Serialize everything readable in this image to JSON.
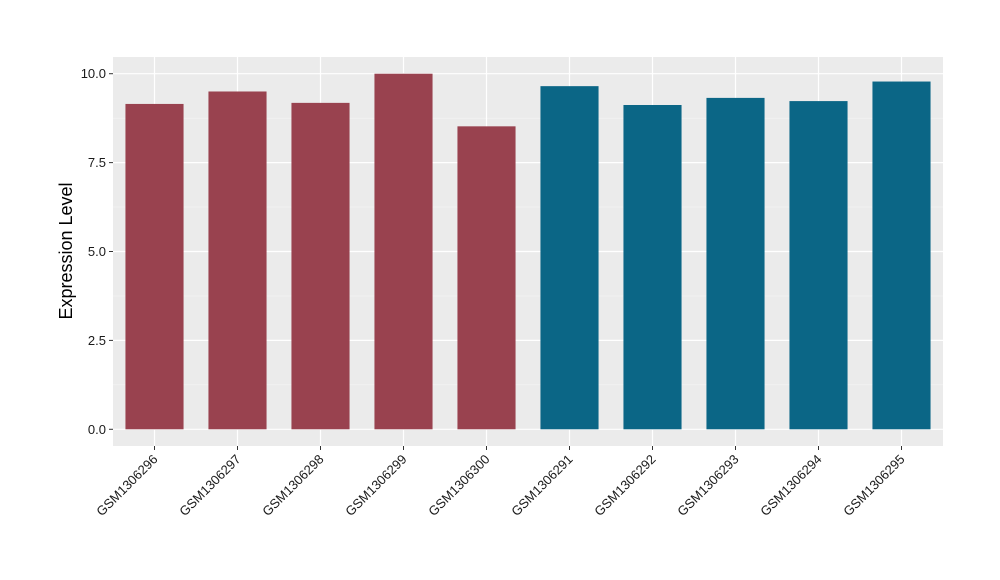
{
  "chart_data": {
    "type": "bar",
    "title": "",
    "xlabel": "",
    "ylabel": "Expression Level",
    "ylim": [
      -0.47,
      10.47
    ],
    "yticks": [
      0.0,
      2.5,
      5.0,
      7.5,
      10.0
    ],
    "ytick_labels": [
      "0.0",
      "2.5",
      "5.0",
      "7.5",
      "10.0"
    ],
    "grid": true,
    "legend": "none",
    "categories": [
      "GSM1306296",
      "GSM1306297",
      "GSM1306298",
      "GSM1306299",
      "GSM1306300",
      "GSM1306291",
      "GSM1306292",
      "GSM1306293",
      "GSM1306294",
      "GSM1306295"
    ],
    "values": [
      9.15,
      9.5,
      9.18,
      10.0,
      8.52,
      9.65,
      9.12,
      9.32,
      9.23,
      9.78
    ],
    "bar_colors": [
      "#99424F",
      "#99424F",
      "#99424F",
      "#99424F",
      "#99424F",
      "#0B6686",
      "#0B6686",
      "#0B6686",
      "#0B6686",
      "#0B6686"
    ],
    "colors": {
      "panel_background": "#EBEBEB",
      "grid_major": "#FFFFFF",
      "grid_minor": "#F5F5F5",
      "group_a": "#99424F",
      "group_b": "#0B6686"
    }
  }
}
